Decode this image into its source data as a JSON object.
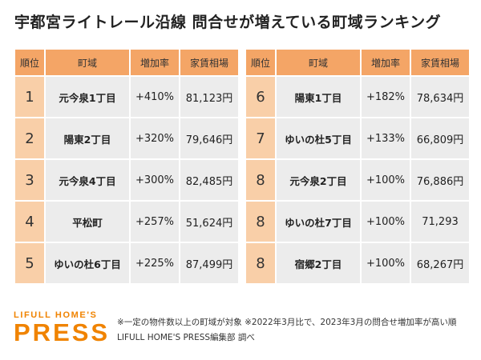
{
  "title": "宇都宮ライトレール沿線 問合せが増えている町域ランキング",
  "headers": {
    "rank": "順位",
    "area": "町域",
    "rate": "増加率",
    "rent": "家賃相場"
  },
  "left_rows": [
    {
      "rank": "1",
      "area": "元今泉1丁目",
      "rate": "+410%",
      "rent": "81,123円"
    },
    {
      "rank": "2",
      "area": "陽東2丁目",
      "rate": "+320%",
      "rent": "79,646円"
    },
    {
      "rank": "3",
      "area": "元今泉4丁目",
      "rate": "+300%",
      "rent": "82,485円"
    },
    {
      "rank": "4",
      "area": "平松町",
      "rate": "+257%",
      "rent": "51,624円"
    },
    {
      "rank": "5",
      "area": "ゆいの杜6丁目",
      "rate": "+225%",
      "rent": "87,499円"
    }
  ],
  "right_rows": [
    {
      "rank": "6",
      "area": "陽東1丁目",
      "rate": "+182%",
      "rent": "78,634円"
    },
    {
      "rank": "7",
      "area": "ゆいの杜5丁目",
      "rate": "+133%",
      "rent": "66,809円"
    },
    {
      "rank": "8",
      "area": "元今泉2丁目",
      "rate": "+100%",
      "rent": "76,886円"
    },
    {
      "rank": "8",
      "area": "ゆいの杜7丁目",
      "rate": "+100%",
      "rent": "71,293"
    },
    {
      "rank": "8",
      "area": "宿郷2丁目",
      "rate": "+100%",
      "rent": "68,267円"
    }
  ],
  "logo": {
    "top": "LIFULL HOME'S",
    "bottom": "PRESS"
  },
  "note": "※一定の物件数以上の町域が対象 ※2022年3月比で、2023年3月の問合せ増加率が高い順",
  "source": "LIFULL HOME'S PRESS編集部 調べ",
  "colors": {
    "header_bg": "#f4a566",
    "rank_bg": "#f9cfa8",
    "cell_bg": "#ececec",
    "brand": "#f08300"
  }
}
